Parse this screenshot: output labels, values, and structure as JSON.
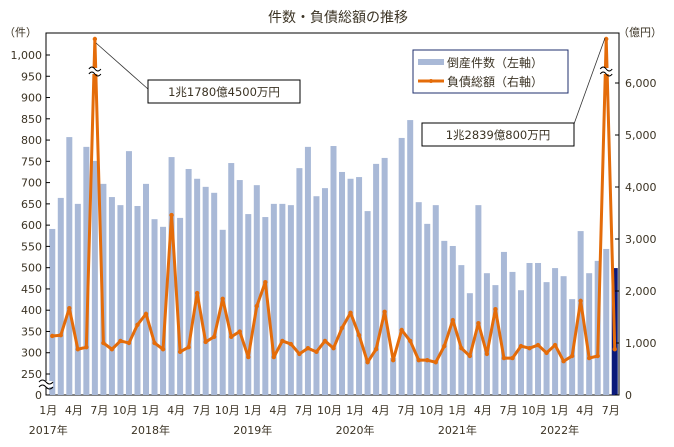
{
  "chart_data": {
    "type": "bar+line",
    "title": "件数・負債総額の推移",
    "left_axis": {
      "unit_label": "（件）",
      "ticks": [
        0,
        250,
        300,
        350,
        400,
        450,
        500,
        550,
        600,
        650,
        700,
        750,
        800,
        850,
        900,
        950,
        1000
      ],
      "tick_labels": [
        "0",
        "250",
        "300",
        "350",
        "400",
        "450",
        "500",
        "550",
        "600",
        "650",
        "700",
        "750",
        "800",
        "850",
        "900",
        "950",
        "1,000"
      ],
      "break_between": [
        0,
        250
      ]
    },
    "right_axis": {
      "unit_label": "（億円）",
      "ticks": [
        0,
        1000,
        2000,
        3000,
        4000,
        5000,
        6000
      ],
      "tick_labels": [
        "0",
        "1,000",
        "2,000",
        "3,000",
        "4,000",
        "5,000",
        "6,000"
      ],
      "break_above": 6000
    },
    "x_tick_labels": [
      {
        "index": 0,
        "month": "1月",
        "year": "2017年"
      },
      {
        "index": 3,
        "month": "4月"
      },
      {
        "index": 6,
        "month": "7月"
      },
      {
        "index": 9,
        "month": "10月"
      },
      {
        "index": 12,
        "month": "1月",
        "year": "2018年"
      },
      {
        "index": 15,
        "month": "4月"
      },
      {
        "index": 18,
        "month": "7月"
      },
      {
        "index": 21,
        "month": "10月"
      },
      {
        "index": 24,
        "month": "1月",
        "year": "2019年"
      },
      {
        "index": 27,
        "month": "4月"
      },
      {
        "index": 30,
        "month": "7月"
      },
      {
        "index": 33,
        "month": "10月"
      },
      {
        "index": 36,
        "month": "1月",
        "year": "2020年"
      },
      {
        "index": 39,
        "month": "4月"
      },
      {
        "index": 42,
        "month": "7月"
      },
      {
        "index": 45,
        "month": "10月"
      },
      {
        "index": 48,
        "month": "1月",
        "year": "2021年"
      },
      {
        "index": 51,
        "month": "4月"
      },
      {
        "index": 54,
        "month": "7月"
      },
      {
        "index": 57,
        "month": "10月"
      },
      {
        "index": 60,
        "month": "1月",
        "year": "2022年"
      },
      {
        "index": 63,
        "month": "4月"
      },
      {
        "index": 66,
        "month": "7月"
      }
    ],
    "x_range": [
      "2017-01",
      "2022-07"
    ],
    "series": [
      {
        "name": "倒産件数（左軸）",
        "type": "bar",
        "axis": "left",
        "color": "#A9B9D7",
        "highlight_last_color": "#0B1A7A",
        "values": [
          591,
          664,
          807,
          650,
          784,
          751,
          697,
          666,
          647,
          774,
          645,
          697,
          614,
          596,
          760,
          617,
          732,
          709,
          690,
          676,
          589,
          746,
          706,
          626,
          694,
          619,
          650,
          650,
          647,
          734,
          784,
          668,
          687,
          786,
          725,
          709,
          713,
          633,
          744,
          758,
          288,
          805,
          847,
          654,
          603,
          647,
          563,
          551,
          506,
          440,
          647,
          487,
          459,
          537,
          490,
          447,
          511,
          511,
          466,
          499,
          480,
          426,
          586,
          487,
          516,
          544,
          499
        ]
      },
      {
        "name": "負債総額（右軸）",
        "type": "line",
        "axis": "right",
        "color": "#E46C0A",
        "values": [
          1135,
          1150,
          1670,
          880,
          920,
          11780.45,
          1000,
          880,
          1040,
          1000,
          1350,
          1560,
          1000,
          880,
          3460,
          830,
          920,
          1960,
          1020,
          1120,
          1850,
          1120,
          1220,
          730,
          1710,
          2170,
          730,
          1040,
          980,
          790,
          900,
          830,
          1040,
          900,
          1290,
          1580,
          1150,
          630,
          880,
          1600,
          670,
          1250,
          1040,
          670,
          670,
          630,
          940,
          1440,
          900,
          750,
          1380,
          790,
          1650,
          710,
          710,
          940,
          900,
          960,
          810,
          960,
          650,
          750,
          1810,
          710,
          750,
          12839.08,
          880
        ]
      }
    ],
    "annotations": [
      {
        "text": "1兆1780億4500万円",
        "index": 5
      },
      {
        "text": "1兆2839億800万円",
        "index": 65
      }
    ],
    "legend": "top-right"
  }
}
